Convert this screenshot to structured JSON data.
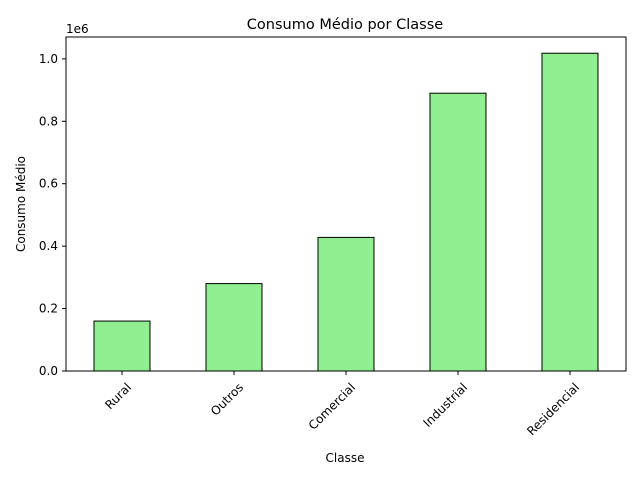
{
  "chart_data": {
    "type": "bar",
    "title": "Consumo Médio por Classe",
    "xlabel": "Classe",
    "ylabel": "Consumo Médio",
    "offset_label": "1e6",
    "categories": [
      "Rural",
      "Outros",
      "Comercial",
      "Industrial",
      "Residencial"
    ],
    "values": [
      160000,
      280000,
      428000,
      890000,
      1018000
    ],
    "ylim": [
      0,
      1070000
    ],
    "yticks": [
      0,
      200000,
      400000,
      600000,
      800000,
      1000000
    ],
    "ytick_labels": [
      "0.0",
      "0.2",
      "0.4",
      "0.6",
      "0.8",
      "1.0"
    ],
    "bar_color": "#90ee90",
    "edge_color": "#000000",
    "grid": false,
    "legend": false
  }
}
